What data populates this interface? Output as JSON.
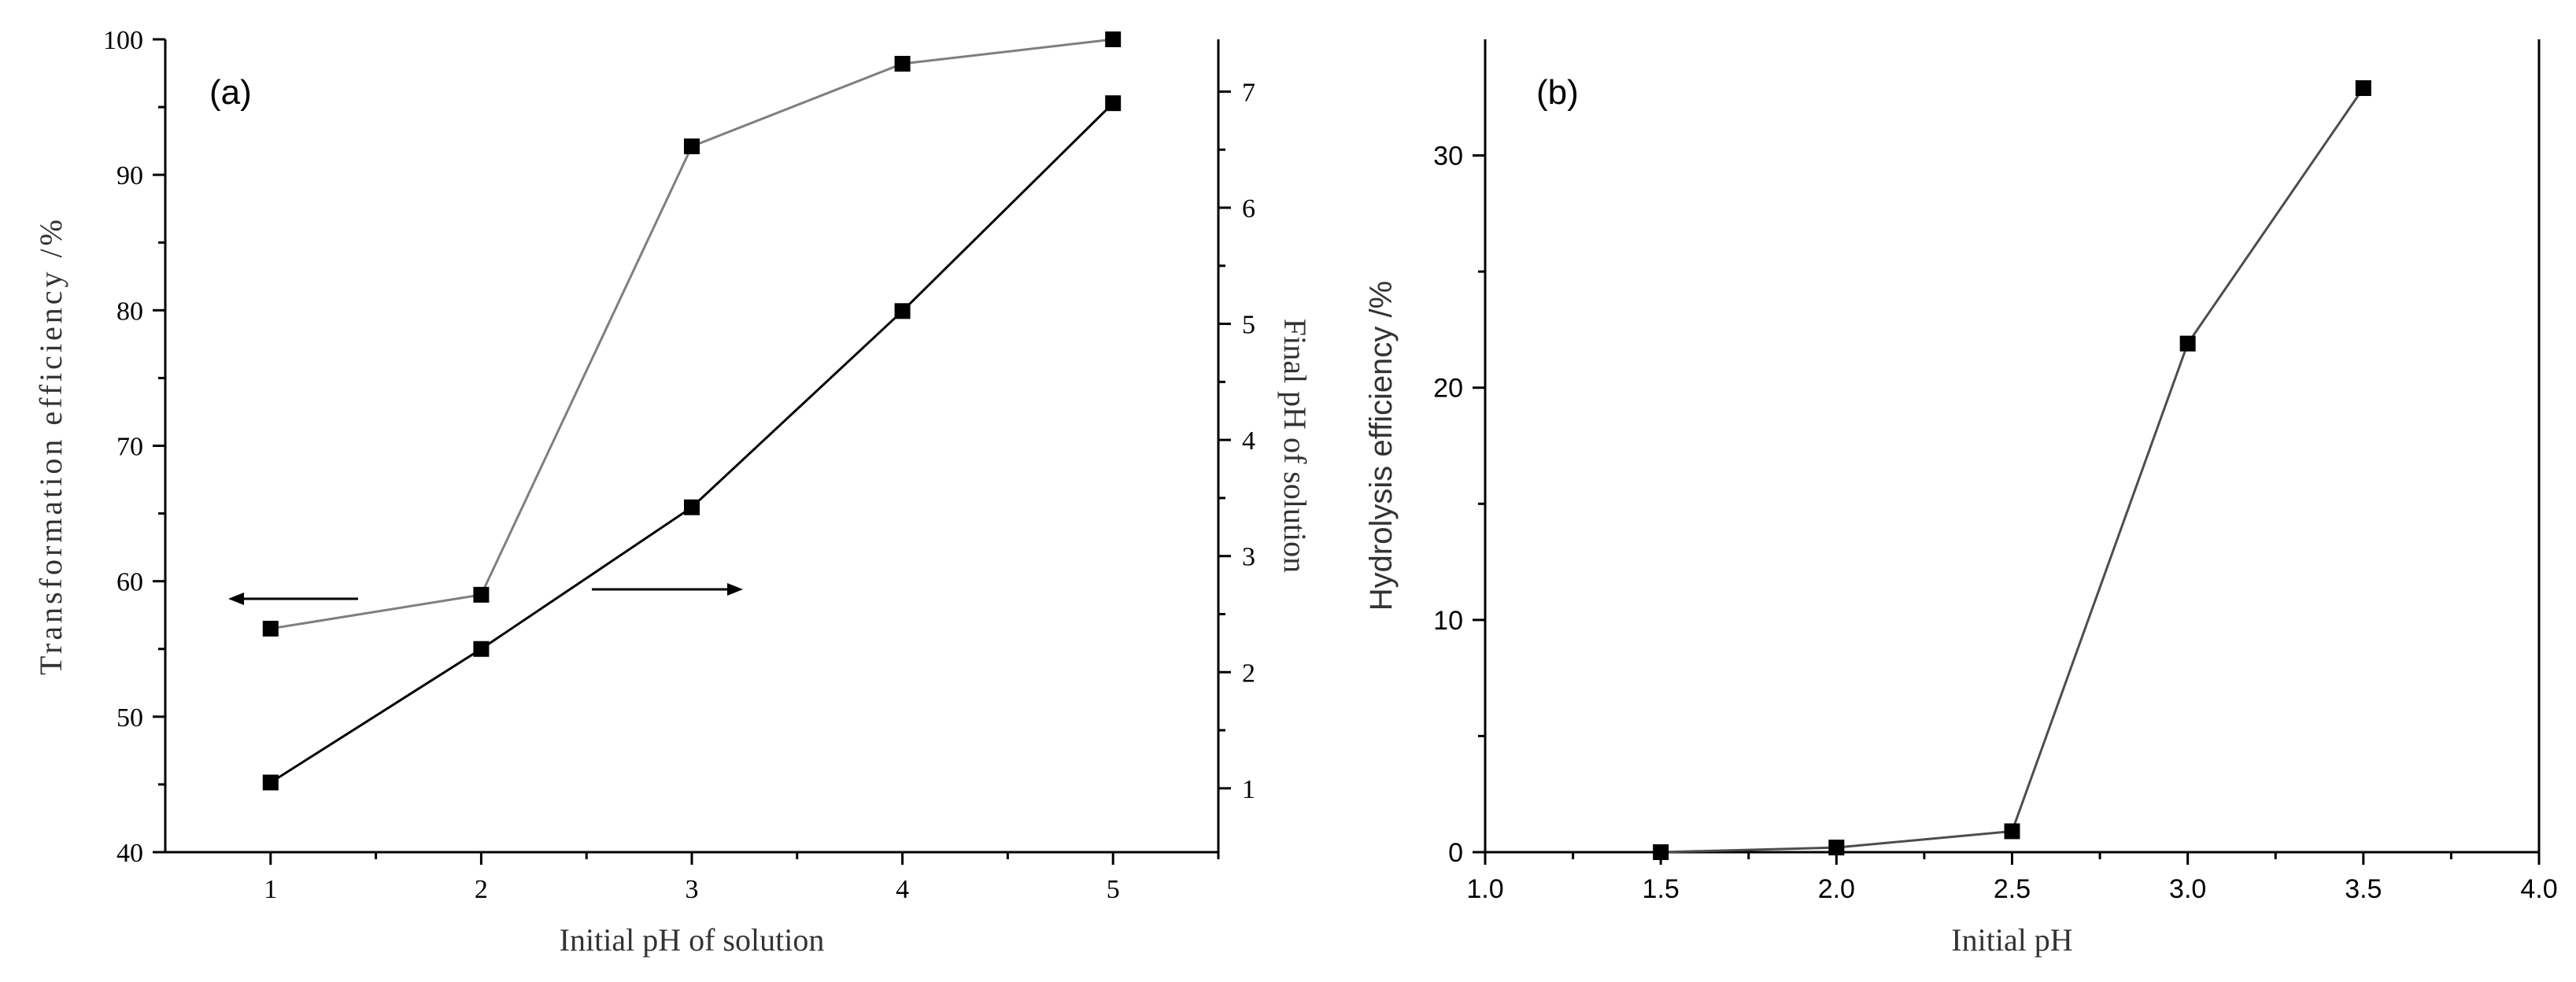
{
  "chart_data": [
    {
      "type": "line",
      "panel_label": "(a)",
      "xlabel": "Initial pH of solution",
      "ylabel": "Transformation efficiency /%",
      "ylabel_right": "Final pH of solution",
      "xlim": [
        0.5,
        5.5
      ],
      "ylim": [
        40,
        100
      ],
      "ylim_right": [
        0.45,
        7.45
      ],
      "x_ticks": [
        "1",
        "2",
        "3",
        "4",
        "5"
      ],
      "y_ticks": [
        "40",
        "50",
        "60",
        "70",
        "80",
        "90",
        "100"
      ],
      "y_ticks_right": [
        "1",
        "2",
        "3",
        "4",
        "5",
        "6",
        "7"
      ],
      "series": [
        {
          "axis": "left",
          "color": "#7f7f7f",
          "x": [
            1,
            2,
            3,
            4,
            5
          ],
          "values": [
            56.5,
            59.0,
            92.1,
            98.2,
            100.0
          ]
        },
        {
          "axis": "right",
          "color": "#000000",
          "x": [
            1,
            2,
            3,
            4,
            5
          ],
          "values": [
            1.05,
            2.2,
            3.42,
            5.11,
            6.9
          ]
        }
      ],
      "annotations": [
        {
          "type": "arrow",
          "direction": "left",
          "points_to": "left axis"
        },
        {
          "type": "arrow",
          "direction": "right",
          "points_to": "right axis"
        }
      ],
      "grid": false
    },
    {
      "type": "line",
      "panel_label": "(b)",
      "xlabel": "Initial pH",
      "ylabel": "Hydrolysis efficiency /%",
      "xlim": [
        1.0,
        4.0
      ],
      "ylim": [
        0,
        35
      ],
      "x_ticks": [
        "1.0",
        "1.5",
        "2.0",
        "2.5",
        "3.0",
        "3.5",
        "4.0"
      ],
      "y_ticks": [
        "0",
        "10",
        "20",
        "30"
      ],
      "series": [
        {
          "color": "#4d4d4d",
          "x": [
            1.5,
            2.0,
            2.5,
            3.0,
            3.5
          ],
          "values": [
            0.0,
            0.2,
            0.9,
            21.9,
            32.9
          ]
        }
      ],
      "grid": false
    }
  ]
}
